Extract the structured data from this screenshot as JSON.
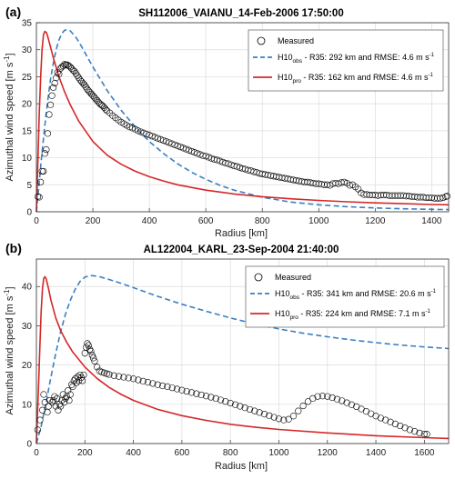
{
  "figure": {
    "ylabel_prefix": "Azimuthal wind speed",
    "ylabel_unit": "[m s",
    "ylabel_exp": "-1",
    "ylabel_close": "]",
    "xlabel": "Radius [km]",
    "legend": {
      "measured": "Measured",
      "obs_prefix": "H10",
      "obs_sub": "obs",
      "pro_sub": "pro",
      "r35_text": " - R35: ",
      "rmse_text": " and RMSE: ",
      "unit_base": " m s",
      "unit_exp": "-1"
    }
  },
  "colors": {
    "measured": "#000000",
    "obs": "#3a7fc1",
    "pro": "#d62728",
    "grid": "#dcdcdc"
  },
  "chart_data": [
    {
      "type": "line",
      "panel": "(a)",
      "title": "SH112006_VAIANU_14-Feb-2006 17:50:00",
      "xlabel": "Radius [km]",
      "ylabel": "Azimuthal wind speed [m s-1]",
      "xlim": [
        0,
        1460
      ],
      "ylim": [
        0,
        35
      ],
      "xticks": [
        0,
        200,
        400,
        600,
        800,
        1000,
        1200,
        1400
      ],
      "yticks": [
        0,
        5,
        10,
        15,
        20,
        25,
        30,
        35
      ],
      "grid": true,
      "legend_position": "top-right",
      "obs_r35": "292 km",
      "obs_rmse": "4.6",
      "pro_r35": "162 km",
      "pro_rmse": "4.6",
      "series": [
        {
          "name": "H10obs - R35: 292 km and RMSE: 4.6 m s-1",
          "style": "dashed",
          "x": [
            0,
            10,
            20,
            30,
            40,
            50,
            60,
            70,
            80,
            90,
            100,
            110,
            120,
            140,
            160,
            180,
            200,
            250,
            300,
            350,
            400,
            450,
            500,
            550,
            600,
            650,
            700,
            800,
            900,
            1000,
            1100,
            1200,
            1300,
            1400,
            1460
          ],
          "y": [
            0,
            5.5,
            11,
            16,
            20.5,
            24.5,
            27.5,
            30,
            31.8,
            33,
            33.6,
            33.7,
            33.5,
            32.3,
            30.6,
            28.7,
            26.8,
            22.5,
            18.8,
            15.7,
            13.0,
            10.8,
            8.9,
            7.3,
            6.0,
            4.9,
            4.0,
            2.7,
            1.8,
            1.3,
            0.95,
            0.7,
            0.55,
            0.45,
            0.4
          ]
        },
        {
          "name": "H10pro - R35: 162 km and RMSE: 4.6 m s-1",
          "style": "solid",
          "x": [
            0,
            5,
            10,
            15,
            20,
            25,
            30,
            35,
            40,
            50,
            60,
            80,
            100,
            120,
            150,
            200,
            250,
            300,
            350,
            400,
            450,
            500,
            600,
            700,
            800,
            900,
            1000,
            1100,
            1200,
            1300,
            1400,
            1460
          ],
          "y": [
            0,
            9,
            18,
            25,
            30,
            32.8,
            33.4,
            33.2,
            32.5,
            30.5,
            28.5,
            25,
            22.2,
            19.8,
            16.8,
            13.0,
            10.5,
            8.8,
            7.5,
            6.5,
            5.7,
            5.0,
            4.0,
            3.3,
            2.8,
            2.4,
            2.1,
            1.85,
            1.65,
            1.5,
            1.35,
            1.3
          ]
        },
        {
          "name": "Measured",
          "style": "markers",
          "x": [
            5,
            10,
            15,
            20,
            25,
            30,
            35,
            40,
            45,
            50,
            55,
            60,
            65,
            70,
            75,
            80,
            85,
            90,
            95,
            100,
            105,
            110,
            115,
            120,
            125,
            130,
            135,
            140,
            145,
            150,
            155,
            160,
            165,
            170,
            175,
            180,
            185,
            190,
            195,
            200,
            205,
            210,
            215,
            220,
            225,
            230,
            235,
            240,
            245,
            250,
            260,
            270,
            280,
            290,
            300,
            310,
            320,
            330,
            340,
            350,
            360,
            370,
            380,
            390,
            400,
            410,
            420,
            430,
            440,
            450,
            460,
            470,
            480,
            490,
            500,
            510,
            520,
            530,
            540,
            550,
            560,
            570,
            580,
            590,
            600,
            610,
            620,
            630,
            640,
            650,
            660,
            670,
            680,
            690,
            700,
            710,
            720,
            730,
            740,
            750,
            760,
            770,
            780,
            790,
            800,
            810,
            820,
            830,
            840,
            850,
            860,
            870,
            880,
            890,
            900,
            910,
            920,
            930,
            940,
            950,
            960,
            970,
            980,
            990,
            1000,
            1010,
            1020,
            1030,
            1040,
            1050,
            1060,
            1070,
            1080,
            1090,
            1100,
            1110,
            1120,
            1130,
            1140,
            1150,
            1160,
            1170,
            1180,
            1190,
            1200,
            1210,
            1220,
            1230,
            1240,
            1250,
            1260,
            1270,
            1280,
            1290,
            1300,
            1310,
            1320,
            1330,
            1340,
            1350,
            1360,
            1370,
            1380,
            1390,
            1400,
            1410,
            1420,
            1430,
            1440,
            1450,
            1455
          ],
          "y": [
            2.8,
            2.7,
            5.5,
            7.5,
            7.5,
            10.8,
            11.5,
            14.5,
            18.0,
            19.8,
            21.5,
            23.0,
            23.8,
            24.8,
            25.8,
            25.5,
            26.5,
            26.8,
            27.0,
            27.3,
            27.2,
            27.2,
            27.0,
            26.8,
            26.5,
            26.2,
            26.0,
            25.6,
            25.2,
            24.8,
            24.4,
            24.1,
            23.8,
            23.5,
            23.1,
            22.7,
            22.4,
            22.1,
            21.8,
            21.5,
            21.2,
            20.9,
            20.6,
            20.3,
            20.0,
            19.8,
            19.6,
            19.3,
            19.0,
            18.7,
            18.3,
            17.8,
            17.4,
            17.0,
            16.6,
            16.3,
            16.0,
            15.7,
            15.5,
            15.3,
            15.0,
            14.8,
            14.6,
            14.4,
            14.2,
            14.0,
            13.8,
            13.6,
            13.4,
            13.2,
            13.0,
            12.8,
            12.6,
            12.4,
            12.2,
            12.0,
            11.8,
            11.6,
            11.4,
            11.2,
            11.0,
            10.8,
            10.6,
            10.4,
            10.3,
            10.1,
            9.9,
            9.7,
            9.6,
            9.4,
            9.2,
            9.0,
            8.9,
            8.7,
            8.5,
            8.4,
            8.2,
            8.0,
            7.9,
            7.7,
            7.6,
            7.4,
            7.3,
            7.1,
            7.0,
            6.9,
            6.8,
            6.7,
            6.6,
            6.5,
            6.4,
            6.3,
            6.2,
            6.1,
            6.0,
            5.9,
            5.8,
            5.7,
            5.6,
            5.5,
            5.5,
            5.4,
            5.3,
            5.2,
            5.2,
            5.1,
            5.0,
            5.0,
            4.9,
            5.2,
            5.3,
            5.2,
            5.4,
            5.5,
            5.3,
            4.9,
            5.0,
            4.6,
            4.2,
            3.5,
            3.2,
            3.2,
            3.1,
            3.1,
            3.1,
            3.0,
            3.1,
            3.1,
            3.1,
            3.0,
            3.0,
            3.0,
            3.0,
            3.0,
            3.0,
            2.9,
            2.9,
            2.8,
            2.8,
            2.7,
            2.7,
            2.7,
            2.6,
            2.6,
            2.6,
            2.5,
            2.5,
            2.5,
            2.6,
            2.8,
            2.9
          ]
        }
      ]
    },
    {
      "type": "line",
      "panel": "(b)",
      "title": "AL122004_KARL_23-Sep-2004 21:40:00",
      "xlabel": "Radius [km]",
      "ylabel": "Azimuthal wind speed [m s-1]",
      "xlim": [
        0,
        1700
      ],
      "ylim": [
        0,
        47
      ],
      "xticks": [
        0,
        200,
        400,
        600,
        800,
        1000,
        1200,
        1400,
        1600
      ],
      "yticks": [
        0,
        10,
        20,
        30,
        40
      ],
      "grid": true,
      "legend_position": "top-right",
      "obs_r35": "341 km",
      "obs_rmse": "20.6",
      "pro_r35": "224 km",
      "pro_rmse": "7.1",
      "series": [
        {
          "name": "H10obs - R35: 341 km and RMSE: 20.6 m s-1",
          "style": "dashed",
          "x": [
            0,
            20,
            40,
            60,
            80,
            100,
            120,
            140,
            160,
            180,
            200,
            220,
            240,
            260,
            300,
            350,
            400,
            500,
            600,
            700,
            800,
            900,
            1000,
            1100,
            1200,
            1300,
            1400,
            1500,
            1600,
            1700
          ],
          "y": [
            0,
            4.5,
            10.5,
            17,
            23,
            28.5,
            33,
            36.5,
            39.3,
            41.3,
            42.4,
            42.8,
            42.7,
            42.5,
            41.8,
            40.8,
            39.7,
            37.5,
            35.5,
            33.7,
            32.0,
            30.5,
            29.2,
            28.1,
            27.2,
            26.4,
            25.7,
            25.1,
            24.6,
            24.2
          ]
        },
        {
          "name": "H10pro - R35: 224 km and RMSE: 7.1 m s-1",
          "style": "solid",
          "x": [
            0,
            5,
            10,
            15,
            20,
            25,
            30,
            35,
            40,
            50,
            60,
            80,
            100,
            125,
            150,
            200,
            250,
            300,
            350,
            400,
            500,
            600,
            700,
            800,
            900,
            1000,
            1200,
            1400,
            1600,
            1700
          ],
          "y": [
            0,
            8,
            17,
            26,
            34,
            39.5,
            42.0,
            42.5,
            42.0,
            39.5,
            36.5,
            32.0,
            28.8,
            25.8,
            23.3,
            19.5,
            16.6,
            14.3,
            12.5,
            11.0,
            8.7,
            7.1,
            5.9,
            4.9,
            4.2,
            3.6,
            2.7,
            2.0,
            1.5,
            1.3
          ]
        },
        {
          "name": "Measured",
          "style": "markers",
          "x": [
            5,
            15,
            25,
            30,
            35,
            45,
            50,
            55,
            65,
            70,
            75,
            80,
            85,
            90,
            95,
            100,
            105,
            110,
            115,
            120,
            125,
            130,
            135,
            140,
            145,
            150,
            155,
            160,
            165,
            170,
            175,
            180,
            185,
            190,
            195,
            200,
            205,
            210,
            215,
            220,
            225,
            230,
            235,
            240,
            250,
            260,
            270,
            280,
            290,
            300,
            320,
            340,
            360,
            380,
            400,
            420,
            440,
            460,
            480,
            500,
            520,
            540,
            560,
            580,
            600,
            620,
            640,
            660,
            680,
            700,
            720,
            740,
            760,
            780,
            800,
            820,
            840,
            860,
            880,
            900,
            920,
            940,
            960,
            980,
            1000,
            1020,
            1040,
            1060,
            1080,
            1100,
            1120,
            1140,
            1160,
            1180,
            1200,
            1220,
            1240,
            1260,
            1280,
            1300,
            1320,
            1340,
            1360,
            1380,
            1400,
            1420,
            1440,
            1460,
            1480,
            1500,
            1520,
            1540,
            1560,
            1580,
            1600,
            1610
          ],
          "y": [
            3.5,
            6.0,
            8.5,
            12.5,
            10.5,
            8.0,
            9.5,
            11.0,
            10.5,
            11.0,
            12.0,
            9.5,
            11.5,
            8.5,
            10.0,
            9.5,
            11.0,
            12.5,
            10.5,
            11.5,
            12.0,
            13.5,
            11.0,
            12.5,
            15.0,
            14.5,
            16.0,
            16.5,
            15.5,
            17.0,
            16.0,
            17.5,
            16.8,
            16.0,
            17.5,
            23.0,
            24.5,
            25.5,
            25.0,
            24.0,
            23.5,
            22.5,
            21.8,
            21.0,
            19.5,
            18.5,
            18.2,
            18.0,
            17.8,
            17.6,
            17.3,
            17.1,
            16.9,
            16.7,
            16.5,
            16.2,
            15.9,
            15.6,
            15.3,
            15.0,
            14.7,
            14.5,
            14.2,
            13.9,
            13.6,
            13.3,
            13.0,
            12.7,
            12.4,
            12.1,
            11.8,
            11.5,
            11.1,
            10.7,
            10.3,
            9.9,
            9.5,
            9.1,
            8.7,
            8.3,
            7.9,
            7.5,
            7.1,
            6.7,
            6.3,
            6.0,
            6.2,
            7.0,
            8.3,
            9.6,
            10.7,
            11.5,
            12.0,
            12.1,
            12.0,
            11.7,
            11.3,
            10.9,
            10.4,
            9.9,
            9.4,
            8.8,
            8.2,
            7.6,
            7.0,
            6.5,
            6.0,
            5.5,
            5.0,
            4.5,
            4.0,
            3.5,
            3.1,
            2.7,
            2.4,
            2.4
          ]
        }
      ]
    }
  ]
}
